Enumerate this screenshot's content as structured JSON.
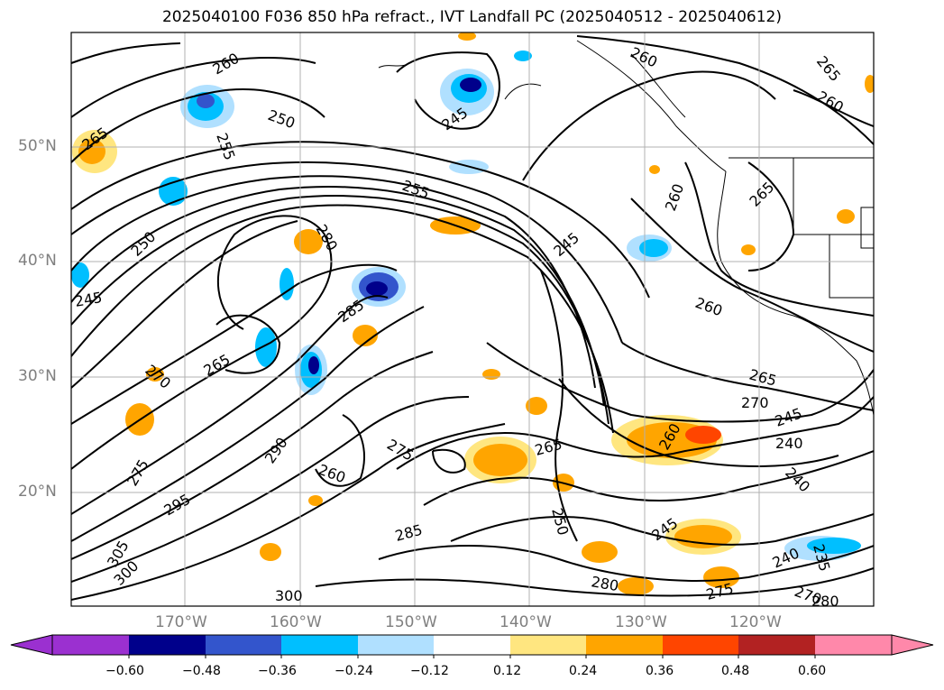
{
  "title": "2025040100 F036 850 hPa refract., IVT Landfall PC (2025040512 - 2025040612)",
  "map": {
    "lat_labels": [
      "50°N",
      "40°N",
      "30°N",
      "20°N"
    ],
    "lon_labels": [
      "170°W",
      "160°W",
      "150°W",
      "140°W",
      "130°W",
      "120°W"
    ],
    "contour_labels": [
      "260",
      "250",
      "255",
      "265",
      "245",
      "260",
      "265",
      "260",
      "255",
      "250",
      "245",
      "280",
      "245",
      "265",
      "285",
      "260",
      "265",
      "270",
      "270",
      "265",
      "290",
      "275",
      "260",
      "240",
      "245",
      "240",
      "260",
      "275",
      "260",
      "265",
      "250",
      "245",
      "240",
      "295",
      "285",
      "280",
      "275",
      "305",
      "300",
      "300",
      "235",
      "270",
      "280"
    ],
    "grid": true
  },
  "colorbar": {
    "ticks": [
      "−0.60",
      "−0.48",
      "−0.36",
      "−0.24",
      "−0.12",
      "0.12",
      "0.24",
      "0.36",
      "0.48",
      "0.60"
    ],
    "colors": [
      "#9b30d0",
      "#00008b",
      "#3355cc",
      "#00bfff",
      "#b0e0ff",
      "#ffffff",
      "#ffe680",
      "#ffa500",
      "#ff4500",
      "#b22222",
      "#ff88aa"
    ],
    "extend": "both"
  }
}
